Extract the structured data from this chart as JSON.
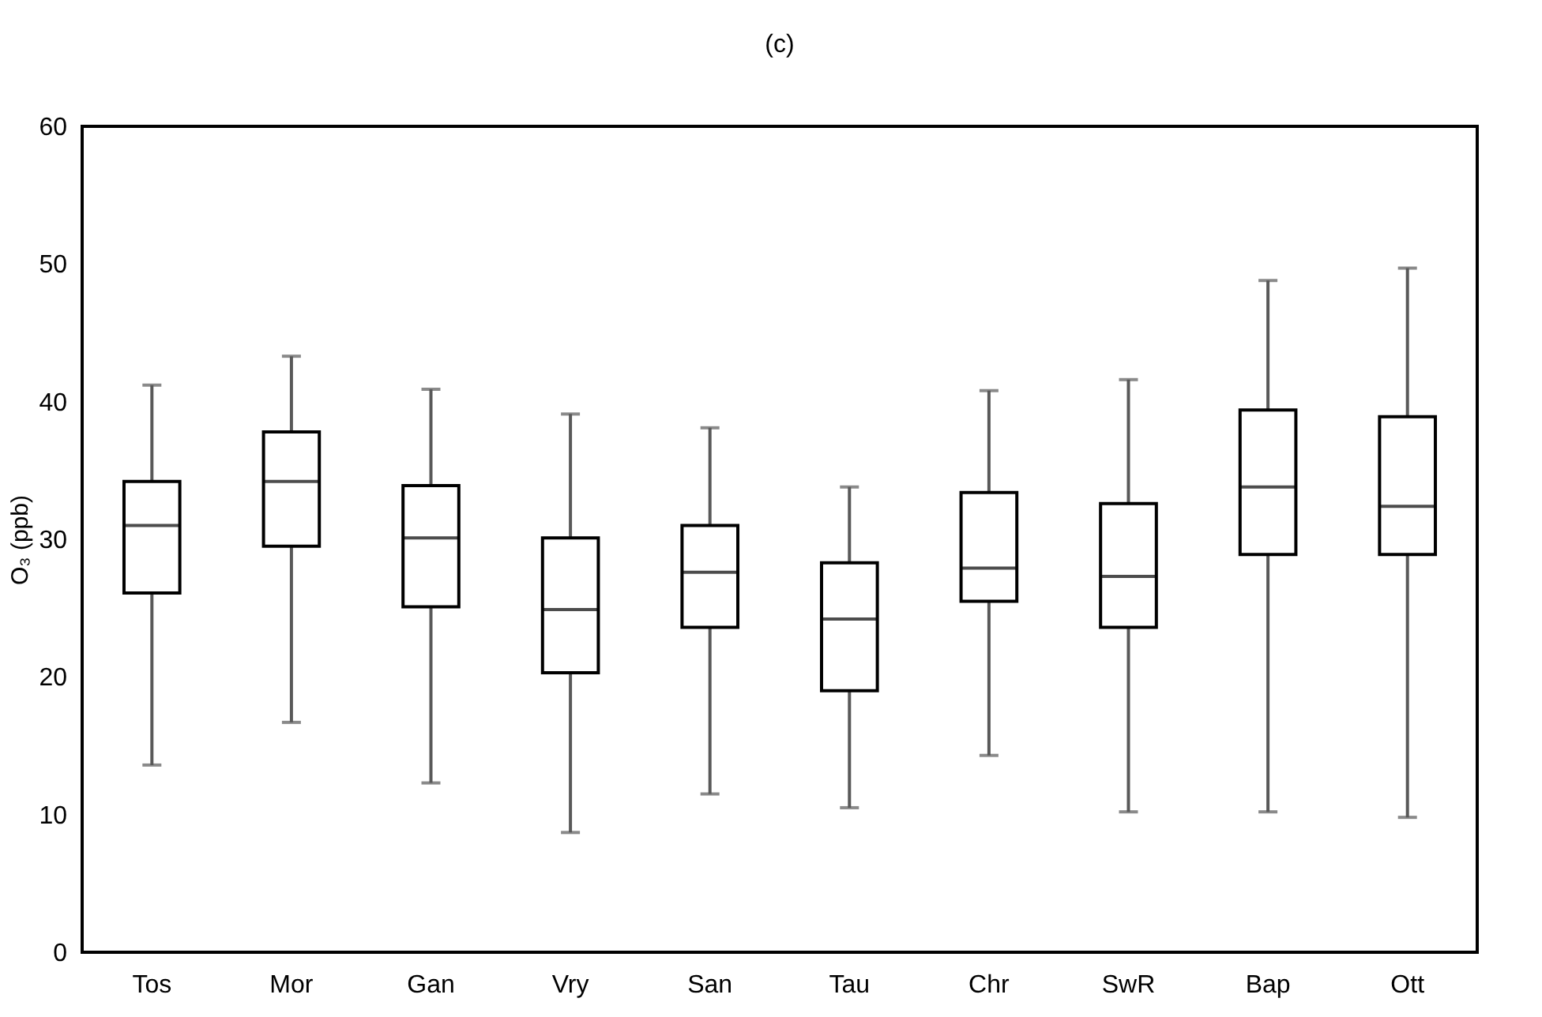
{
  "chart_data": {
    "type": "box",
    "title": "(c)",
    "ylabel": "O₃ (ppb)",
    "categories": [
      "Tos",
      "Mor",
      "Gan",
      "Vry",
      "San",
      "Tau",
      "Chr",
      "SwR",
      "Bap",
      "Ott"
    ],
    "boxes": [
      {
        "low": 13.6,
        "q1": 26.1,
        "median": 31.0,
        "q3": 34.2,
        "high": 41.2
      },
      {
        "low": 16.7,
        "q1": 29.5,
        "median": 34.2,
        "q3": 37.8,
        "high": 43.3
      },
      {
        "low": 12.3,
        "q1": 25.1,
        "median": 30.1,
        "q3": 33.9,
        "high": 40.9
      },
      {
        "low": 8.7,
        "q1": 20.3,
        "median": 24.9,
        "q3": 30.1,
        "high": 39.1
      },
      {
        "low": 11.5,
        "q1": 23.6,
        "median": 27.6,
        "q3": 31.0,
        "high": 38.1
      },
      {
        "low": 10.5,
        "q1": 19.0,
        "median": 24.2,
        "q3": 28.3,
        "high": 33.8
      },
      {
        "low": 14.3,
        "q1": 25.5,
        "median": 27.9,
        "q3": 33.4,
        "high": 40.8
      },
      {
        "low": 10.2,
        "q1": 23.6,
        "median": 27.3,
        "q3": 32.6,
        "high": 41.6
      },
      {
        "low": 10.2,
        "q1": 28.9,
        "median": 33.8,
        "q3": 39.4,
        "high": 48.8
      },
      {
        "low": 9.8,
        "q1": 28.9,
        "median": 32.4,
        "q3": 38.9,
        "high": 49.7
      }
    ],
    "color": "#000000",
    "ylim": [
      0,
      60
    ],
    "yticks": [
      0,
      10,
      20,
      30,
      40,
      50,
      60
    ],
    "grid": false
  }
}
